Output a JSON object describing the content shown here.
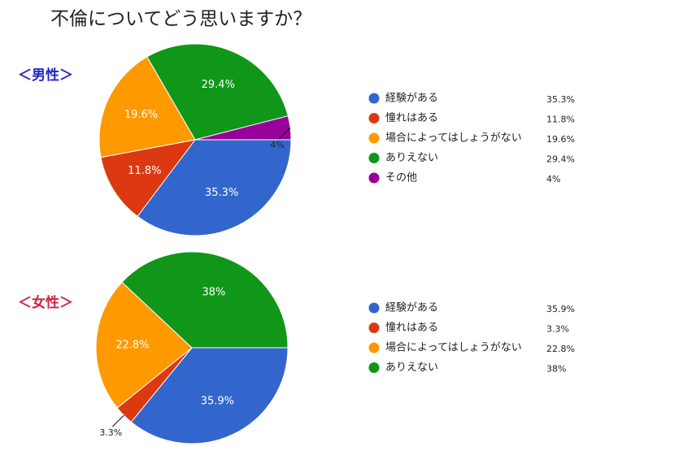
{
  "title": "不倫についてどう思いますか？",
  "chart_data": [
    {
      "type": "pie",
      "title": "＜男性＞",
      "title_color": "#2222cc",
      "categories": [
        "経験がある",
        "憧れはある",
        "場合によってはしょうがない",
        "ありえない",
        "その他"
      ],
      "values": [
        35.3,
        11.8,
        19.6,
        29.4,
        4
      ],
      "value_labels": [
        "35.3%",
        "11.8%",
        "19.6%",
        "29.4%",
        "4%"
      ],
      "colors": [
        "#3366cc",
        "#dc3912",
        "#ff9900",
        "#109618",
        "#990099"
      ],
      "legend": "right"
    },
    {
      "type": "pie",
      "title": "＜女性＞",
      "title_color": "#cc2244",
      "categories": [
        "経験がある",
        "憧れはある",
        "場合によってはしょうがない",
        "ありえない"
      ],
      "values": [
        35.9,
        3.3,
        22.8,
        38
      ],
      "value_labels": [
        "35.9%",
        "3.3%",
        "22.8%",
        "38%"
      ],
      "colors": [
        "#3366cc",
        "#dc3912",
        "#ff9900",
        "#109618"
      ],
      "legend": "right"
    }
  ]
}
